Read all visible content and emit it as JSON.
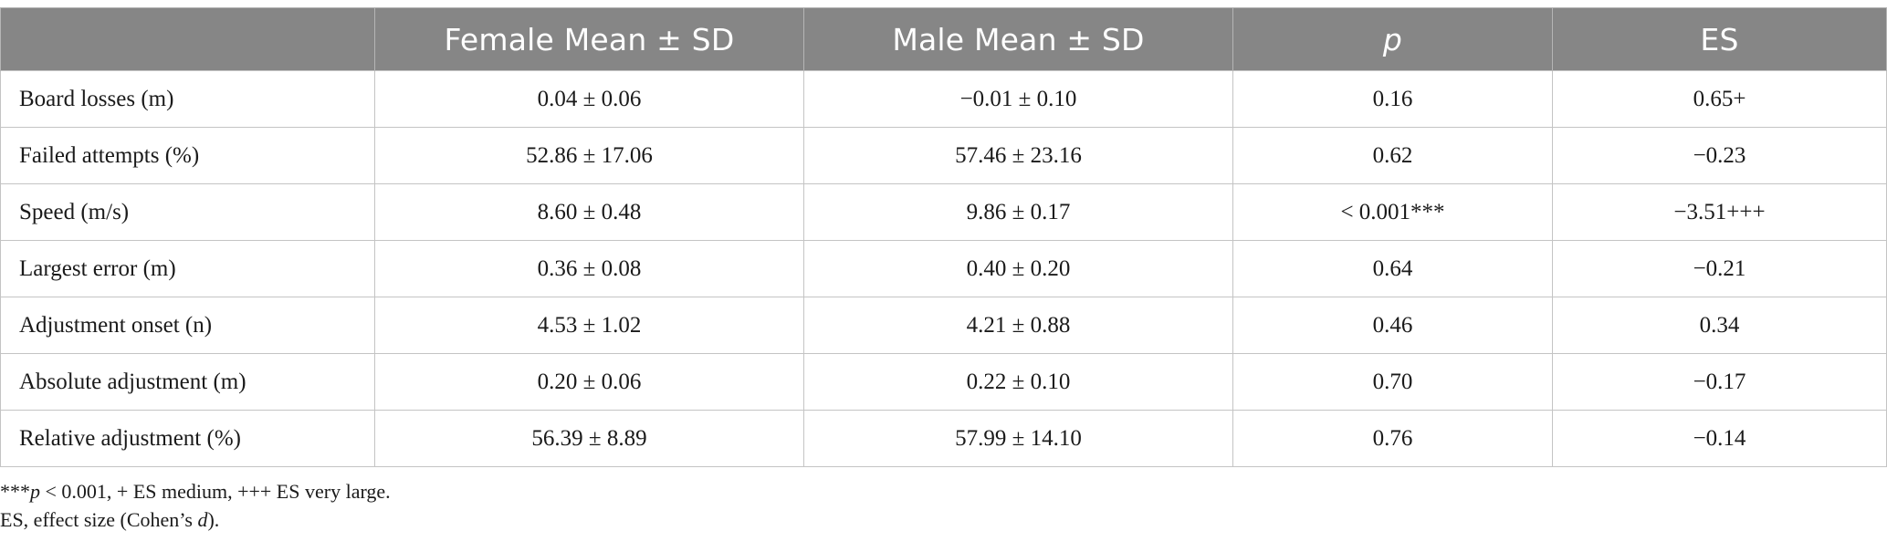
{
  "table": {
    "headers": [
      {
        "text": "",
        "style": "normal"
      },
      {
        "text": "Female Mean ± SD",
        "style": "normal"
      },
      {
        "text": "Male Mean ± SD",
        "style": "normal"
      },
      {
        "text": "p",
        "style": "italic"
      },
      {
        "text": "ES",
        "style": "normal"
      }
    ],
    "rows": [
      {
        "label": "Board losses (m)",
        "female": "0.04 ± 0.06",
        "male": "−0.01 ± 0.10",
        "p": "0.16",
        "es": "0.65+"
      },
      {
        "label": "Failed attempts (%)",
        "female": "52.86 ± 17.06",
        "male": "57.46 ± 23.16",
        "p": "0.62",
        "es": "−0.23"
      },
      {
        "label": "Speed (m/s)",
        "female": "8.60 ± 0.48",
        "male": "9.86 ± 0.17",
        "p": "< 0.001***",
        "es": "−3.51+++"
      },
      {
        "label": "Largest error (m)",
        "female": "0.36 ± 0.08",
        "male": "0.40 ± 0.20",
        "p": "0.64",
        "es": "−0.21"
      },
      {
        "label": "Adjustment onset (n)",
        "female": "4.53 ± 1.02",
        "male": "4.21 ± 0.88",
        "p": "0.46",
        "es": "0.34"
      },
      {
        "label": "Absolute adjustment (m)",
        "female": "0.20 ± 0.06",
        "male": "0.22 ± 0.10",
        "p": "0.70",
        "es": "−0.17"
      },
      {
        "label": "Relative adjustment (%)",
        "female": "56.39 ± 8.89",
        "male": "57.99 ± 14.10",
        "p": "0.76",
        "es": "−0.14"
      }
    ]
  },
  "footnotes": {
    "line1": {
      "prefix": "***",
      "italic": "p",
      "rest": " < 0.001, + ES medium, +++ ES very large."
    },
    "line2": {
      "prefix": "ES, effect size (Cohen’s ",
      "italic": "d",
      "rest": ")."
    }
  },
  "colors": {
    "header_background": "#868686",
    "header_text": "#ffffff",
    "grid_line": "#c4c4c4"
  }
}
